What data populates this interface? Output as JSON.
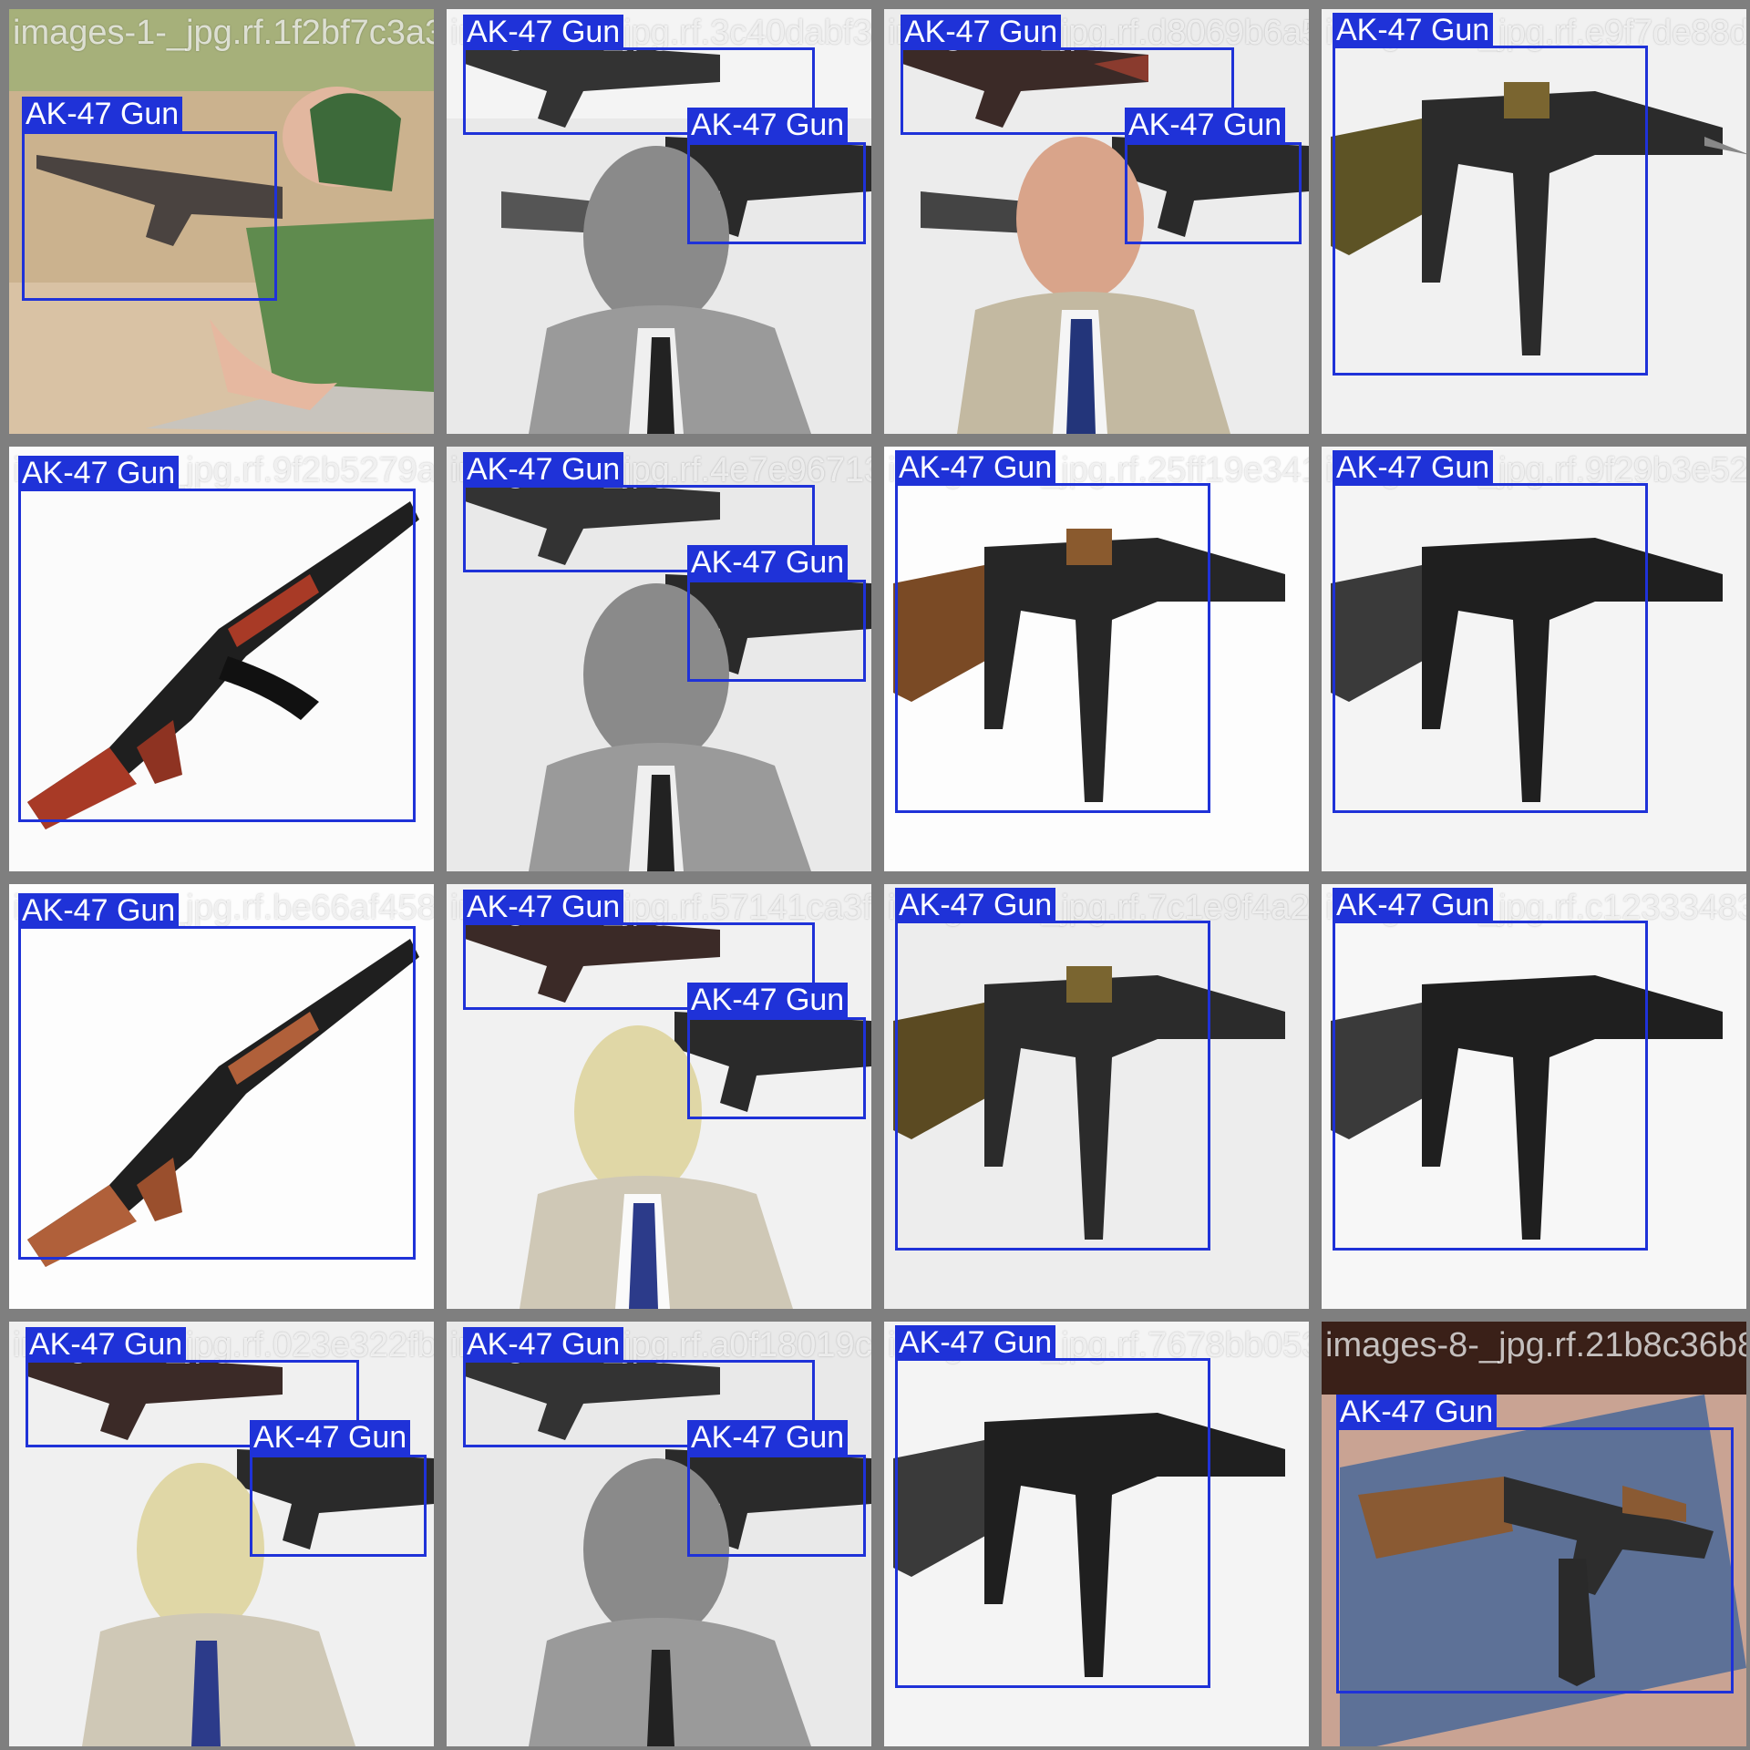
{
  "class_label": "AK-47 Gun",
  "box_color": "#1f32d8",
  "tiles": [
    {
      "filename": "images-1-_jpg.rf.1f2bf7c3a3e4",
      "scene": "outdoor-shooter"
    },
    {
      "filename": "images-3-_jpg.rf.3c40dabf39f",
      "scene": "kalashnikov-gray"
    },
    {
      "filename": "images-2-_jpg.rf.d8069b6a5",
      "scene": "kalashnikov-color"
    },
    {
      "filename": "images-9-_jpg.rf.e9f7de88d39ec",
      "scene": "ak-closeup-olive"
    },
    {
      "filename": "images-5-_jpg.rf.9f2b5279af9",
      "scene": "ak-red"
    },
    {
      "filename": "images-3-_jpg.rf.4e7e967130",
      "scene": "kalashnikov-gray"
    },
    {
      "filename": "images-7-_jpg.rf.25ff19e341",
      "scene": "ak-closeup-brown"
    },
    {
      "filename": "images-8-_jpg.rf.9f29b3e52c",
      "scene": "ak-closeup-bw"
    },
    {
      "filename": "images-5-_jpg.rf.be66af458d",
      "scene": "ak-brown"
    },
    {
      "filename": "images-2-_jpg.rf.57141ca3f7",
      "scene": "kalashnikov-washed"
    },
    {
      "filename": "images-9-_jpg.rf.7c1e9f4a2",
      "scene": "ak-closeup-olive"
    },
    {
      "filename": "images-8-_jpg.rf.c12333483",
      "scene": "ak-closeup-bw"
    },
    {
      "filename": "images-6-_jpg.rf.023e322fbd",
      "scene": "kalashnikov-washed"
    },
    {
      "filename": "images-3-_jpg.rf.a0f18019c8",
      "scene": "kalashnikov-gray"
    },
    {
      "filename": "images-8-_jpg.rf.7678bb053be",
      "scene": "ak-closeup-bw"
    },
    {
      "filename": "images-8-_jpg.rf.21b8c36b82",
      "scene": "ak-on-bag"
    }
  ]
}
